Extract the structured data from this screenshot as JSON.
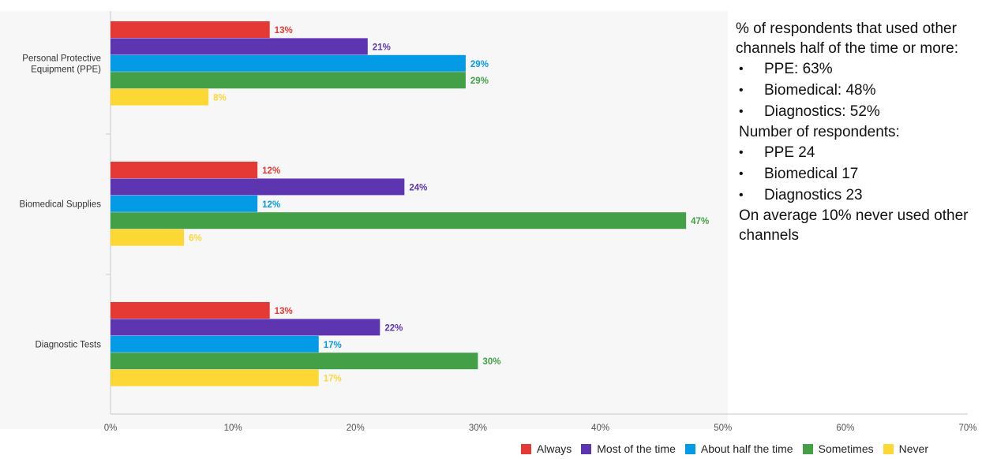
{
  "chart_data": {
    "type": "bar",
    "orientation": "horizontal",
    "categories": [
      "Personal Protective Equipment (PPE)",
      "Biomedical Supplies",
      "Diagnostic Tests"
    ],
    "series": [
      {
        "name": "Always",
        "color": "#e53935",
        "values": [
          13,
          12,
          13
        ],
        "labels": [
          "13%",
          "12%",
          "13%"
        ]
      },
      {
        "name": "Most of the time",
        "color": "#5e35b1",
        "values": [
          21,
          24,
          22
        ],
        "labels": [
          "21%",
          "24%",
          "22%"
        ]
      },
      {
        "name": "About half the time",
        "color": "#039be5",
        "values": [
          29,
          12,
          17
        ],
        "labels": [
          "29%",
          "12%",
          "17%"
        ]
      },
      {
        "name": "Sometimes",
        "color": "#43a047",
        "values": [
          29,
          47,
          30
        ],
        "labels": [
          "29%",
          "47%",
          "30%"
        ]
      },
      {
        "name": "Never",
        "color": "#fdd835",
        "values": [
          8,
          6,
          17
        ],
        "labels": [
          "8%",
          "6%",
          "17%"
        ]
      }
    ],
    "xlim": [
      0,
      70
    ],
    "xticks": [
      "0%",
      "10%",
      "20%",
      "30%",
      "40%",
      "50%",
      "60%",
      "70%"
    ],
    "grid": false,
    "legend_position": "bottom-right"
  },
  "notes": {
    "summary_heading": "% of respondents that used other channels half of the time or more:",
    "summary_items": [
      "PPE: 63%",
      "Biomedical: 48%",
      "Diagnostics: 52%"
    ],
    "counts_heading": "Number of respondents:",
    "counts_items": [
      "PPE 24",
      "Biomedical 17",
      "Diagnostics 23"
    ],
    "average_note": "On average 10% never used other channels"
  }
}
